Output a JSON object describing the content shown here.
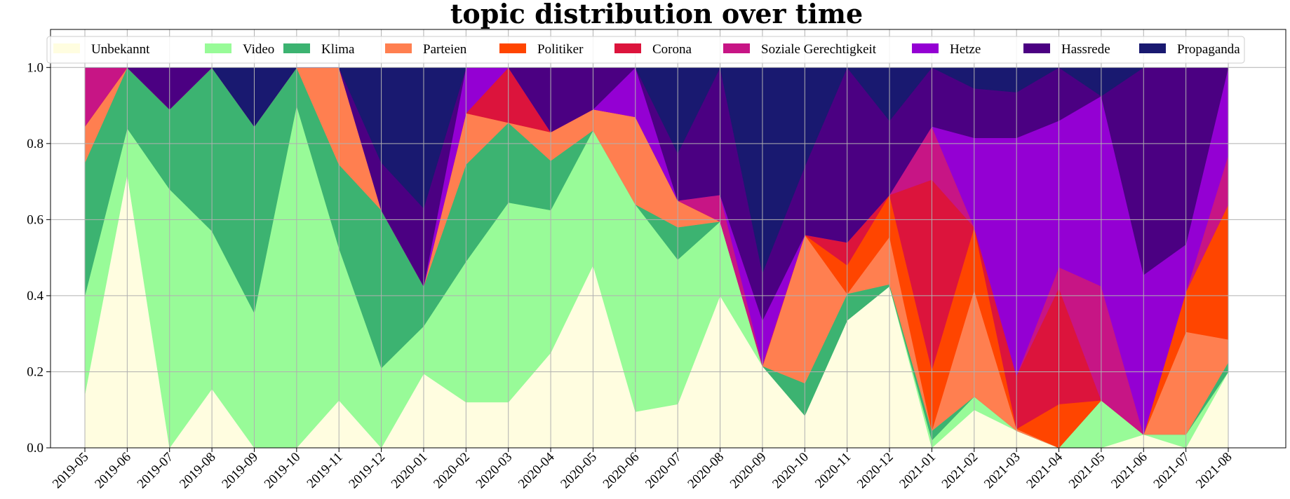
{
  "chart_data": {
    "type": "area",
    "stacked": true,
    "normalized": true,
    "title": "topic distribution over time",
    "xlabel": "",
    "ylabel": "",
    "ylim": [
      0,
      1.1
    ],
    "yticks": [
      "0.0",
      "0.2",
      "0.4",
      "0.6",
      "0.8",
      "1.0"
    ],
    "grid": true,
    "legend_position": "top, single row",
    "categories": [
      "2019-05",
      "2019-06",
      "2019-07",
      "2019-08",
      "2019-09",
      "2019-10",
      "2019-11",
      "2019-12",
      "2020-01",
      "2020-02",
      "2020-03",
      "2020-04",
      "2020-05",
      "2020-06",
      "2020-07",
      "2020-08",
      "2020-09",
      "2020-10",
      "2020-11",
      "2020-12",
      "2021-01",
      "2021-02",
      "2021-03",
      "2021-04",
      "2021-05",
      "2021-06",
      "2021-07",
      "2021-08"
    ],
    "series": [
      {
        "name": "Unbekannt",
        "color": "#fffde0",
        "values": [
          0.14,
          0.72,
          0.0,
          0.155,
          0.0,
          0.0,
          0.125,
          0.0,
          0.195,
          0.12,
          0.12,
          0.25,
          0.48,
          0.095,
          0.115,
          0.4,
          0.215,
          0.085,
          0.335,
          0.425,
          0.0,
          0.1,
          0.045,
          0.0,
          0.0,
          0.035,
          0.0,
          0.2
        ]
      },
      {
        "name": "Video",
        "color": "#98fb98",
        "values": [
          0.26,
          0.12,
          0.68,
          0.415,
          0.355,
          0.9,
          0.4,
          0.21,
          0.125,
          0.37,
          0.525,
          0.375,
          0.355,
          0.545,
          0.38,
          0.195,
          0.0,
          0.0,
          0.0,
          0.0,
          0.02,
          0.035,
          0.0,
          0.0,
          0.125,
          0.0,
          0.035,
          0.0
        ]
      },
      {
        "name": "Klima",
        "color": "#3cb371",
        "values": [
          0.35,
          0.16,
          0.21,
          0.43,
          0.49,
          0.1,
          0.22,
          0.415,
          0.105,
          0.255,
          0.21,
          0.13,
          0.0,
          0.0,
          0.085,
          0.0,
          0.0,
          0.085,
          0.07,
          0.005,
          0.025,
          0.0,
          0.0,
          0.0,
          0.0,
          0.0,
          0.0,
          0.025
        ]
      },
      {
        "name": "Parteien",
        "color": "#ff7f50",
        "values": [
          0.095,
          0.0,
          0.0,
          0.0,
          0.0,
          0.0,
          0.255,
          0.0,
          0.0,
          0.135,
          0.0,
          0.075,
          0.055,
          0.23,
          0.07,
          0.0,
          0.0,
          0.39,
          0.0,
          0.125,
          0.0,
          0.28,
          0.005,
          0.0,
          0.0,
          0.0,
          0.27,
          0.06
        ]
      },
      {
        "name": "Politiker",
        "color": "#ff4500",
        "values": [
          0.0,
          0.0,
          0.0,
          0.0,
          0.0,
          0.0,
          0.0,
          0.0,
          0.0,
          0.0,
          0.0,
          0.0,
          0.0,
          0.0,
          0.0,
          0.0,
          0.0,
          0.0,
          0.075,
          0.11,
          0.16,
          0.165,
          0.0,
          0.115,
          0.0,
          0.0,
          0.105,
          0.355
        ]
      },
      {
        "name": "Corona",
        "color": "#dc143c",
        "values": [
          0.0,
          0.0,
          0.0,
          0.0,
          0.0,
          0.0,
          0.0,
          0.0,
          0.0,
          0.0,
          0.145,
          0.0,
          0.0,
          0.0,
          0.0,
          0.0,
          0.0,
          0.0,
          0.06,
          0.0,
          0.5,
          0.0,
          0.14,
          0.305,
          0.0,
          0.0,
          0.0,
          0.0
        ]
      },
      {
        "name": "Soziale Gerechtigkeit",
        "color": "#c71585",
        "values": [
          0.155,
          0.0,
          0.0,
          0.0,
          0.0,
          0.0,
          0.0,
          0.0,
          0.0,
          0.0,
          0.0,
          0.0,
          0.0,
          0.0,
          0.0,
          0.07,
          0.005,
          0.0,
          0.0,
          0.0,
          0.14,
          0.0,
          0.0,
          0.055,
          0.3,
          0.0,
          0.0,
          0.13
        ]
      },
      {
        "name": "Hetze",
        "color": "#9400d3",
        "values": [
          0.0,
          0.0,
          0.0,
          0.0,
          0.0,
          0.0,
          0.0,
          0.0,
          0.0,
          0.12,
          0.0,
          0.0,
          0.0,
          0.13,
          0.0,
          0.0,
          0.115,
          0.0,
          0.0,
          0.0,
          0.0,
          0.235,
          0.625,
          0.385,
          0.5,
          0.42,
          0.125,
          0.23
        ]
      },
      {
        "name": "Hassrede",
        "color": "#4b0082",
        "values": [
          0.0,
          0.0,
          0.11,
          0.0,
          0.0,
          0.0,
          0.0,
          0.125,
          0.205,
          0.0,
          0.0,
          0.17,
          0.11,
          0.0,
          0.125,
          0.335,
          0.125,
          0.18,
          0.46,
          0.195,
          0.155,
          0.13,
          0.12,
          0.14,
          0.0,
          0.545,
          0.465,
          0.0
        ]
      },
      {
        "name": "Propaganda",
        "color": "#191970",
        "values": [
          0.0,
          0.0,
          0.0,
          0.0,
          0.155,
          0.0,
          0.0,
          0.25,
          0.37,
          0.0,
          0.0,
          0.0,
          0.0,
          0.0,
          0.225,
          0.0,
          0.54,
          0.26,
          0.0,
          0.14,
          0.0,
          0.055,
          0.065,
          0.0,
          0.075,
          0.0,
          0.0,
          0.0
        ]
      }
    ]
  }
}
